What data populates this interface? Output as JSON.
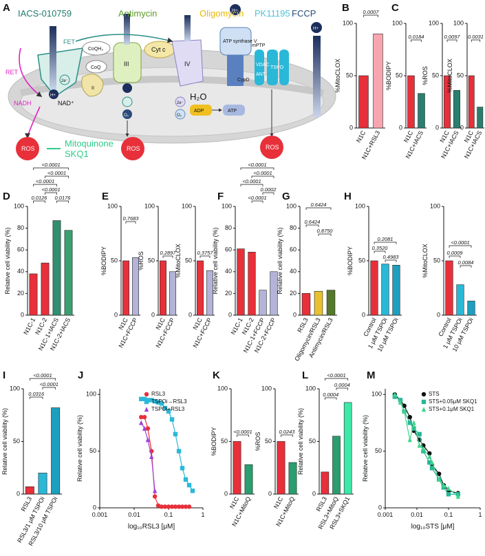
{
  "diagram": {
    "panel": "A",
    "texts": [
      "IACS-010759",
      "Antimycin",
      "Oligomycin",
      "PK11195",
      "FCCP",
      "FET",
      "RET",
      "CoQH₂",
      "CoQ",
      "III",
      "Cyt c",
      "IV",
      "ATP synthase V",
      "CypD",
      "mPTP",
      "VDAC",
      "ANT",
      "TSPO",
      "NADH",
      "NAD⁺",
      "ADP",
      "ATP",
      "H₂O",
      "ROS",
      "ROS",
      "ROS",
      "Mitoquinone",
      "SKQ1",
      "H+",
      "2e⁻",
      "O₂",
      "2e⁻",
      "O₂",
      "H+",
      "H+",
      "II"
    ]
  },
  "chart_data": [
    {
      "type": "bar",
      "panel": "B",
      "ylabel": "%MitoCLOX",
      "categories": [
        "N1C",
        "N1C+RSL3"
      ],
      "values": [
        50,
        90
      ],
      "colors": [
        "#e8303a",
        "#f7a6b0"
      ],
      "ylim": [
        0,
        100
      ],
      "yticks": [
        0,
        50,
        100
      ],
      "annotations": [
        "0.0007"
      ]
    },
    {
      "type": "bar",
      "panel": "C",
      "ylabel": "%BODIPY",
      "categories": [
        "N1C",
        "N1C+IACS"
      ],
      "values": [
        50,
        33
      ],
      "colors": [
        "#e8303a",
        "#2a7f6f"
      ],
      "ylim": [
        0,
        100
      ],
      "yticks": [
        0,
        50,
        100
      ],
      "annotations": [
        "0.0184"
      ]
    },
    {
      "type": "bar",
      "ylabel": "%ROS",
      "categories": [
        "N1C",
        "N1C+IACS"
      ],
      "values": [
        50,
        36
      ],
      "colors": [
        "#e8303a",
        "#2a7f6f"
      ],
      "ylim": [
        0,
        100
      ],
      "yticks": [
        0,
        50,
        100
      ],
      "annotations": [
        "0.0097"
      ]
    },
    {
      "type": "bar",
      "ylabel": "%MitoCLOX",
      "categories": [
        "N1C",
        "N1C+IACS"
      ],
      "values": [
        50,
        20
      ],
      "colors": [
        "#e8303a",
        "#2a7f6f"
      ],
      "ylim": [
        0,
        100
      ],
      "yticks": [
        0,
        50,
        100
      ],
      "annotations": [
        "0.0031"
      ]
    },
    {
      "type": "bar",
      "panel": "D",
      "ylabel": "Relative cell viability (%)",
      "categories": [
        "N1C-1",
        "N1C-2",
        "N1C-1+IACS",
        "N1C-2+IACS"
      ],
      "values": [
        38,
        48,
        87,
        78
      ],
      "colors": [
        "#e8303a",
        "#e8303a",
        "#2f8f70",
        "#3b9f72"
      ],
      "ylim": [
        0,
        100
      ],
      "yticks": [
        0,
        20,
        40,
        60,
        80,
        100
      ],
      "annotations": [
        "<0.0001",
        "<0.0001",
        "<0.0001",
        "<0.0001",
        "0.0126",
        "0.0176"
      ]
    },
    {
      "type": "bar",
      "panel": "E",
      "ylabel": "%BODIPY",
      "categories": [
        "N1C",
        "N1C+FCCP"
      ],
      "values": [
        50,
        53
      ],
      "colors": [
        "#e8303a",
        "#b4b4d8"
      ],
      "ylim": [
        0,
        100
      ],
      "yticks": [
        0,
        50,
        100
      ],
      "annotations": [
        "0.7683"
      ]
    },
    {
      "type": "bar",
      "ylabel": "%ROS",
      "categories": [
        "N1C",
        "N1C+FCCP"
      ],
      "values": [
        50,
        40
      ],
      "colors": [
        "#e8303a",
        "#b4b4d8"
      ],
      "ylim": [
        0,
        100
      ],
      "yticks": [
        0,
        50,
        100
      ],
      "annotations": [
        "0.2897"
      ]
    },
    {
      "type": "bar",
      "ylabel": "%MitoCLOX",
      "categories": [
        "N1C",
        "N1C+FCCP"
      ],
      "values": [
        50,
        41
      ],
      "colors": [
        "#e8303a",
        "#b4b4d8"
      ],
      "ylim": [
        0,
        100
      ],
      "yticks": [
        0,
        50,
        100
      ],
      "annotations": [
        "0.3757"
      ]
    },
    {
      "type": "bar",
      "panel": "F",
      "ylabel": "Relative cell viability (%)",
      "categories": [
        "N1C-1",
        "N1C-2",
        "N1C-1+FCCP",
        "N1C-2+FCCP"
      ],
      "values": [
        61,
        58,
        23,
        40
      ],
      "colors": [
        "#e8303a",
        "#e8303a",
        "#b4b4d8",
        "#b4b4d8"
      ],
      "ylim": [
        0,
        100
      ],
      "yticks": [
        0,
        20,
        40,
        60,
        80,
        100
      ],
      "annotations": [
        "<0.0001",
        "<0.0001",
        "<0.0001",
        "0.0002",
        "<0.0001"
      ]
    },
    {
      "type": "bar",
      "panel": "G",
      "ylabel": "Relative cell viability (%)",
      "categories": [
        "RSL3",
        "Oligomycin/RSL3",
        "Antimycin/RSL3"
      ],
      "values": [
        20,
        22,
        23
      ],
      "colors": [
        "#e8303a",
        "#e8c12e",
        "#55782a"
      ],
      "ylim": [
        0,
        100
      ],
      "yticks": [
        0,
        20,
        40,
        60,
        80,
        100
      ],
      "annotations": [
        "0.6424",
        "0.6424",
        "0.8750"
      ]
    },
    {
      "type": "bar",
      "panel": "H",
      "ylabel": "%BODIPY",
      "categories": [
        "Control",
        "1 μM TSPOi",
        "10 μM TSPOi"
      ],
      "values": [
        50,
        47,
        46
      ],
      "colors": [
        "#e8303a",
        "#2ab8d8",
        "#1d9fbf"
      ],
      "ylim": [
        0,
        100
      ],
      "yticks": [
        0,
        50,
        100
      ],
      "annotations": [
        "0.2081",
        "0.3520",
        "0.4983"
      ]
    },
    {
      "type": "bar",
      "ylabel": "%MitoCLOX",
      "categories": [
        "Control",
        "1 μM TSPOi",
        "10 μM TSPOi"
      ],
      "values": [
        50,
        28,
        13
      ],
      "colors": [
        "#e8303a",
        "#2ab8d8",
        "#1d9fbf"
      ],
      "ylim": [
        0,
        100
      ],
      "yticks": [
        0,
        50,
        100
      ],
      "annotations": [
        "<0.0001",
        "0.0009",
        "0.0084"
      ]
    },
    {
      "type": "bar",
      "panel": "I",
      "ylabel": "Relative cell viability (%)",
      "categories": [
        "RSL3",
        "RSL3/1 μM TSPOi",
        "RSL3/10 μM TSPOi"
      ],
      "values": [
        7,
        20,
        82
      ],
      "colors": [
        "#e8303a",
        "#2ab8d8",
        "#1d9fbf"
      ],
      "ylim": [
        0,
        100
      ],
      "yticks": [
        0,
        50,
        100
      ],
      "annotations": [
        "<0.0001",
        "<0.0001",
        "0.0316"
      ]
    },
    {
      "type": "scatter",
      "panel": "J",
      "log_x": true,
      "legend": "upper right",
      "xlabel": "log₁₀RSL3 [μM]",
      "ylabel": "Relative cell viability (%)",
      "xlim": [
        0.001,
        1
      ],
      "xticks": [
        0.001,
        0.01,
        0.1,
        1
      ],
      "ylim": [
        0,
        105
      ],
      "yticks": [
        0,
        50,
        100
      ],
      "series": [
        {
          "name": "RSL3",
          "color": "#e8303a",
          "marker": "circle",
          "x": [
            0.016,
            0.02,
            0.025,
            0.032,
            0.04,
            0.05,
            0.063,
            0.079,
            0.1,
            0.126,
            0.158,
            0.2,
            0.251,
            0.316,
            0.398
          ],
          "values": [
            80,
            80,
            70,
            50,
            10,
            2,
            1,
            1,
            1,
            1,
            1,
            1,
            1,
            1,
            1
          ]
        },
        {
          "name": "TSPOi→RSL3",
          "color": "#2ab8d8",
          "marker": "square",
          "x": [
            0.016,
            0.02,
            0.025,
            0.032,
            0.04,
            0.05,
            0.063,
            0.079,
            0.1,
            0.126,
            0.158,
            0.2,
            0.251,
            0.316,
            0.398,
            0.5
          ],
          "values": [
            96,
            96,
            95,
            95,
            94,
            93,
            92,
            88,
            85,
            78,
            65,
            50,
            35,
            25,
            20,
            15
          ]
        },
        {
          "name": "TSPOi+RSL3",
          "color": "#a040d8",
          "marker": "triangle",
          "x": [
            0.016,
            0.02,
            0.025,
            0.032,
            0.04
          ],
          "values": [
            75,
            70,
            60,
            45,
            15
          ]
        }
      ]
    },
    {
      "type": "bar",
      "panel": "K",
      "ylabel": "%BODIPY",
      "categories": [
        "N1C",
        "N1C+MitoQ"
      ],
      "values": [
        50,
        28
      ],
      "colors": [
        "#e8303a",
        "#2a9e6e"
      ],
      "ylim": [
        0,
        100
      ],
      "yticks": [
        0,
        50,
        100
      ],
      "annotations": [
        "<0.0001"
      ]
    },
    {
      "type": "bar",
      "ylabel": "%ROS",
      "categories": [
        "N1C",
        "N1C+MitoQ"
      ],
      "values": [
        50,
        30
      ],
      "colors": [
        "#e8303a",
        "#2a9e6e"
      ],
      "ylim": [
        0,
        100
      ],
      "yticks": [
        0,
        50,
        100
      ],
      "annotations": [
        "0.0243"
      ]
    },
    {
      "type": "bar",
      "panel": "L",
      "ylabel": "Relative cell viability (%)",
      "categories": [
        "RSL3",
        "RSL3+MitoQ",
        "RSL3+SKQ1"
      ],
      "values": [
        21,
        55,
        87
      ],
      "colors": [
        "#e8303a",
        "#2a9e6e",
        "#3ee8a8"
      ],
      "ylim": [
        0,
        100
      ],
      "yticks": [
        0,
        50,
        100
      ],
      "annotations": [
        "<0.0001",
        "0.0004",
        "0.0004"
      ]
    },
    {
      "type": "scatter",
      "panel": "M",
      "log_x": true,
      "legend": "upper right",
      "xlabel": "log₁₀STS [μM]",
      "ylabel": "Relative cell viability (%)",
      "xlim": [
        0.001,
        1
      ],
      "xticks": [
        0.001,
        0.01,
        0.1,
        1
      ],
      "ylim": [
        0,
        105
      ],
      "yticks": [
        0,
        50,
        100
      ],
      "series": [
        {
          "name": "STS",
          "color": "#111111",
          "marker": "circle",
          "x": [
            0.002,
            0.003,
            0.004,
            0.006,
            0.008,
            0.012,
            0.016,
            0.025,
            0.03,
            0.05,
            0.07,
            0.1,
            0.2
          ],
          "values": [
            100,
            95,
            90,
            80,
            68,
            60,
            55,
            48,
            38,
            30,
            20,
            15,
            13
          ]
        },
        {
          "name": "STS+0.05μM SKQ1",
          "color": "#2ab59a",
          "marker": "square",
          "x": [
            0.002,
            0.003,
            0.004,
            0.006,
            0.008,
            0.012,
            0.016,
            0.025,
            0.03,
            0.05,
            0.07,
            0.1,
            0.2
          ],
          "values": [
            98,
            95,
            85,
            75,
            70,
            65,
            50,
            40,
            35,
            25,
            18,
            12,
            12
          ]
        },
        {
          "name": "STS+0.1μM SKQ1",
          "color": "#3dd68a",
          "marker": "triangle",
          "x": [
            0.002,
            0.003,
            0.004,
            0.006,
            0.008,
            0.012,
            0.016,
            0.025,
            0.03,
            0.05,
            0.07,
            0.1,
            0.2
          ],
          "values": [
            100,
            93,
            85,
            60,
            75,
            55,
            52,
            45,
            40,
            25,
            20,
            17,
            10
          ]
        }
      ]
    }
  ]
}
